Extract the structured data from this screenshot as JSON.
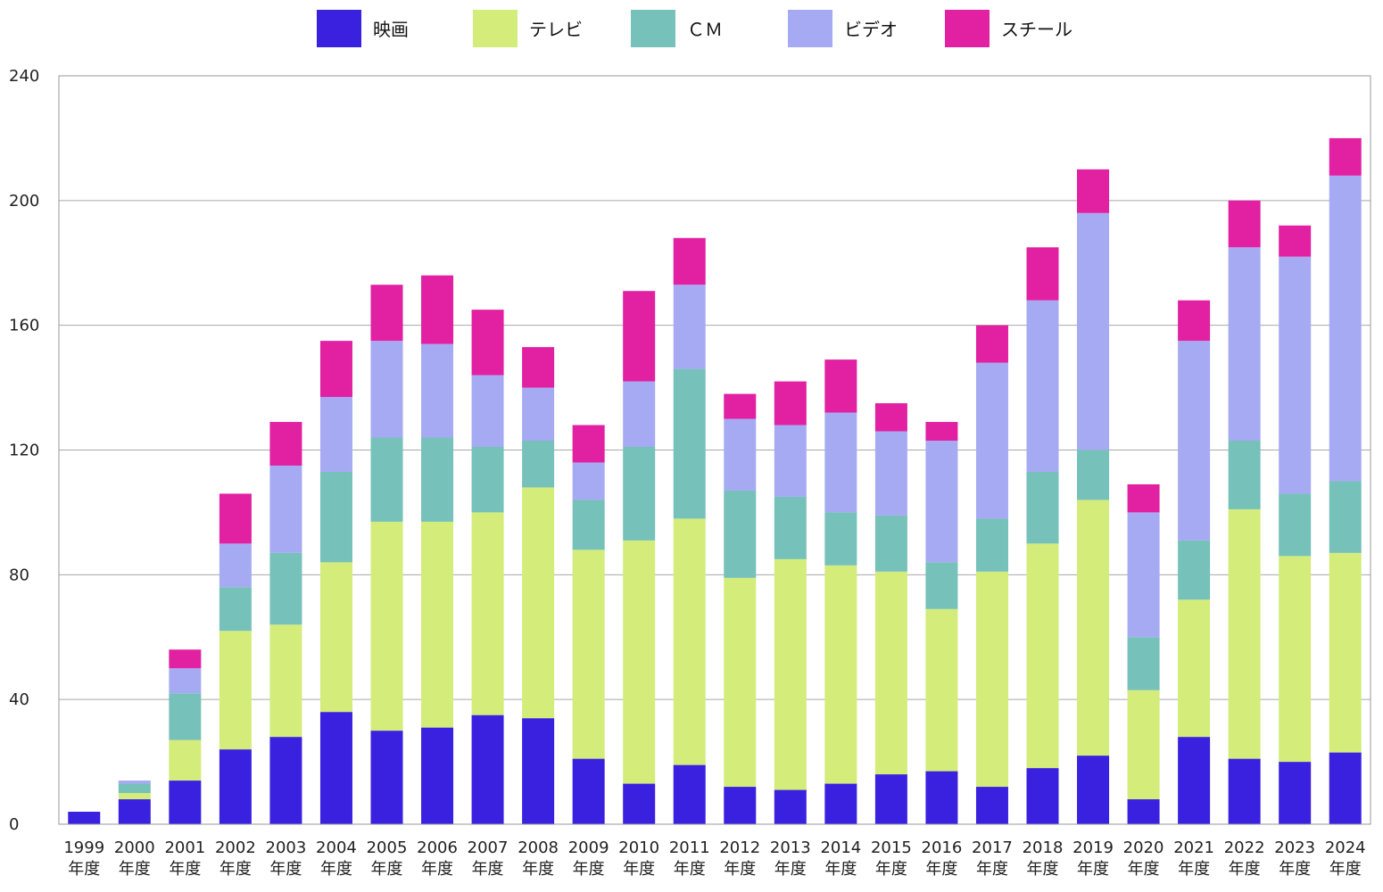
{
  "chart_data": {
    "type": "bar",
    "stacked": true,
    "title": "",
    "xlabel": "",
    "ylabel": "",
    "ylim": [
      0,
      240
    ],
    "yticks": [
      0,
      40,
      80,
      120,
      160,
      200,
      240
    ],
    "grid": true,
    "legend_position": "top",
    "year_suffix": "年度",
    "categories": [
      "1999",
      "2000",
      "2001",
      "2002",
      "2003",
      "2004",
      "2005",
      "2006",
      "2007",
      "2008",
      "2009",
      "2010",
      "2011",
      "2012",
      "2013",
      "2014",
      "2015",
      "2016",
      "2017",
      "2018",
      "2019",
      "2020",
      "2021",
      "2022",
      "2023",
      "2024"
    ],
    "series": [
      {
        "name": "映画",
        "color": "#3a21e0",
        "values": [
          4,
          8,
          14,
          24,
          28,
          36,
          30,
          31,
          35,
          34,
          21,
          13,
          19,
          12,
          11,
          13,
          16,
          17,
          12,
          18,
          22,
          8,
          28,
          21,
          20,
          23
        ]
      },
      {
        "name": "テレビ",
        "color": "#d3ec7a",
        "values": [
          0,
          2,
          13,
          38,
          36,
          48,
          67,
          66,
          65,
          74,
          67,
          78,
          79,
          67,
          74,
          70,
          65,
          52,
          69,
          72,
          82,
          35,
          44,
          80,
          66,
          64
        ]
      },
      {
        "name": "ＣＭ",
        "color": "#76c1b9",
        "values": [
          0,
          3,
          15,
          14,
          23,
          29,
          27,
          27,
          21,
          15,
          16,
          30,
          48,
          28,
          20,
          17,
          18,
          15,
          17,
          23,
          16,
          17,
          19,
          22,
          20,
          23
        ]
      },
      {
        "name": "ビデオ",
        "color": "#a6aaf3",
        "values": [
          0,
          1,
          8,
          14,
          28,
          24,
          31,
          30,
          23,
          17,
          12,
          21,
          27,
          23,
          23,
          32,
          27,
          39,
          50,
          55,
          76,
          40,
          64,
          62,
          76,
          98
        ]
      },
      {
        "name": "スチール",
        "color": "#e120a2",
        "values": [
          0,
          0,
          6,
          16,
          14,
          18,
          18,
          22,
          21,
          13,
          12,
          29,
          15,
          8,
          14,
          17,
          9,
          6,
          12,
          17,
          14,
          9,
          13,
          15,
          10,
          12
        ]
      }
    ]
  }
}
